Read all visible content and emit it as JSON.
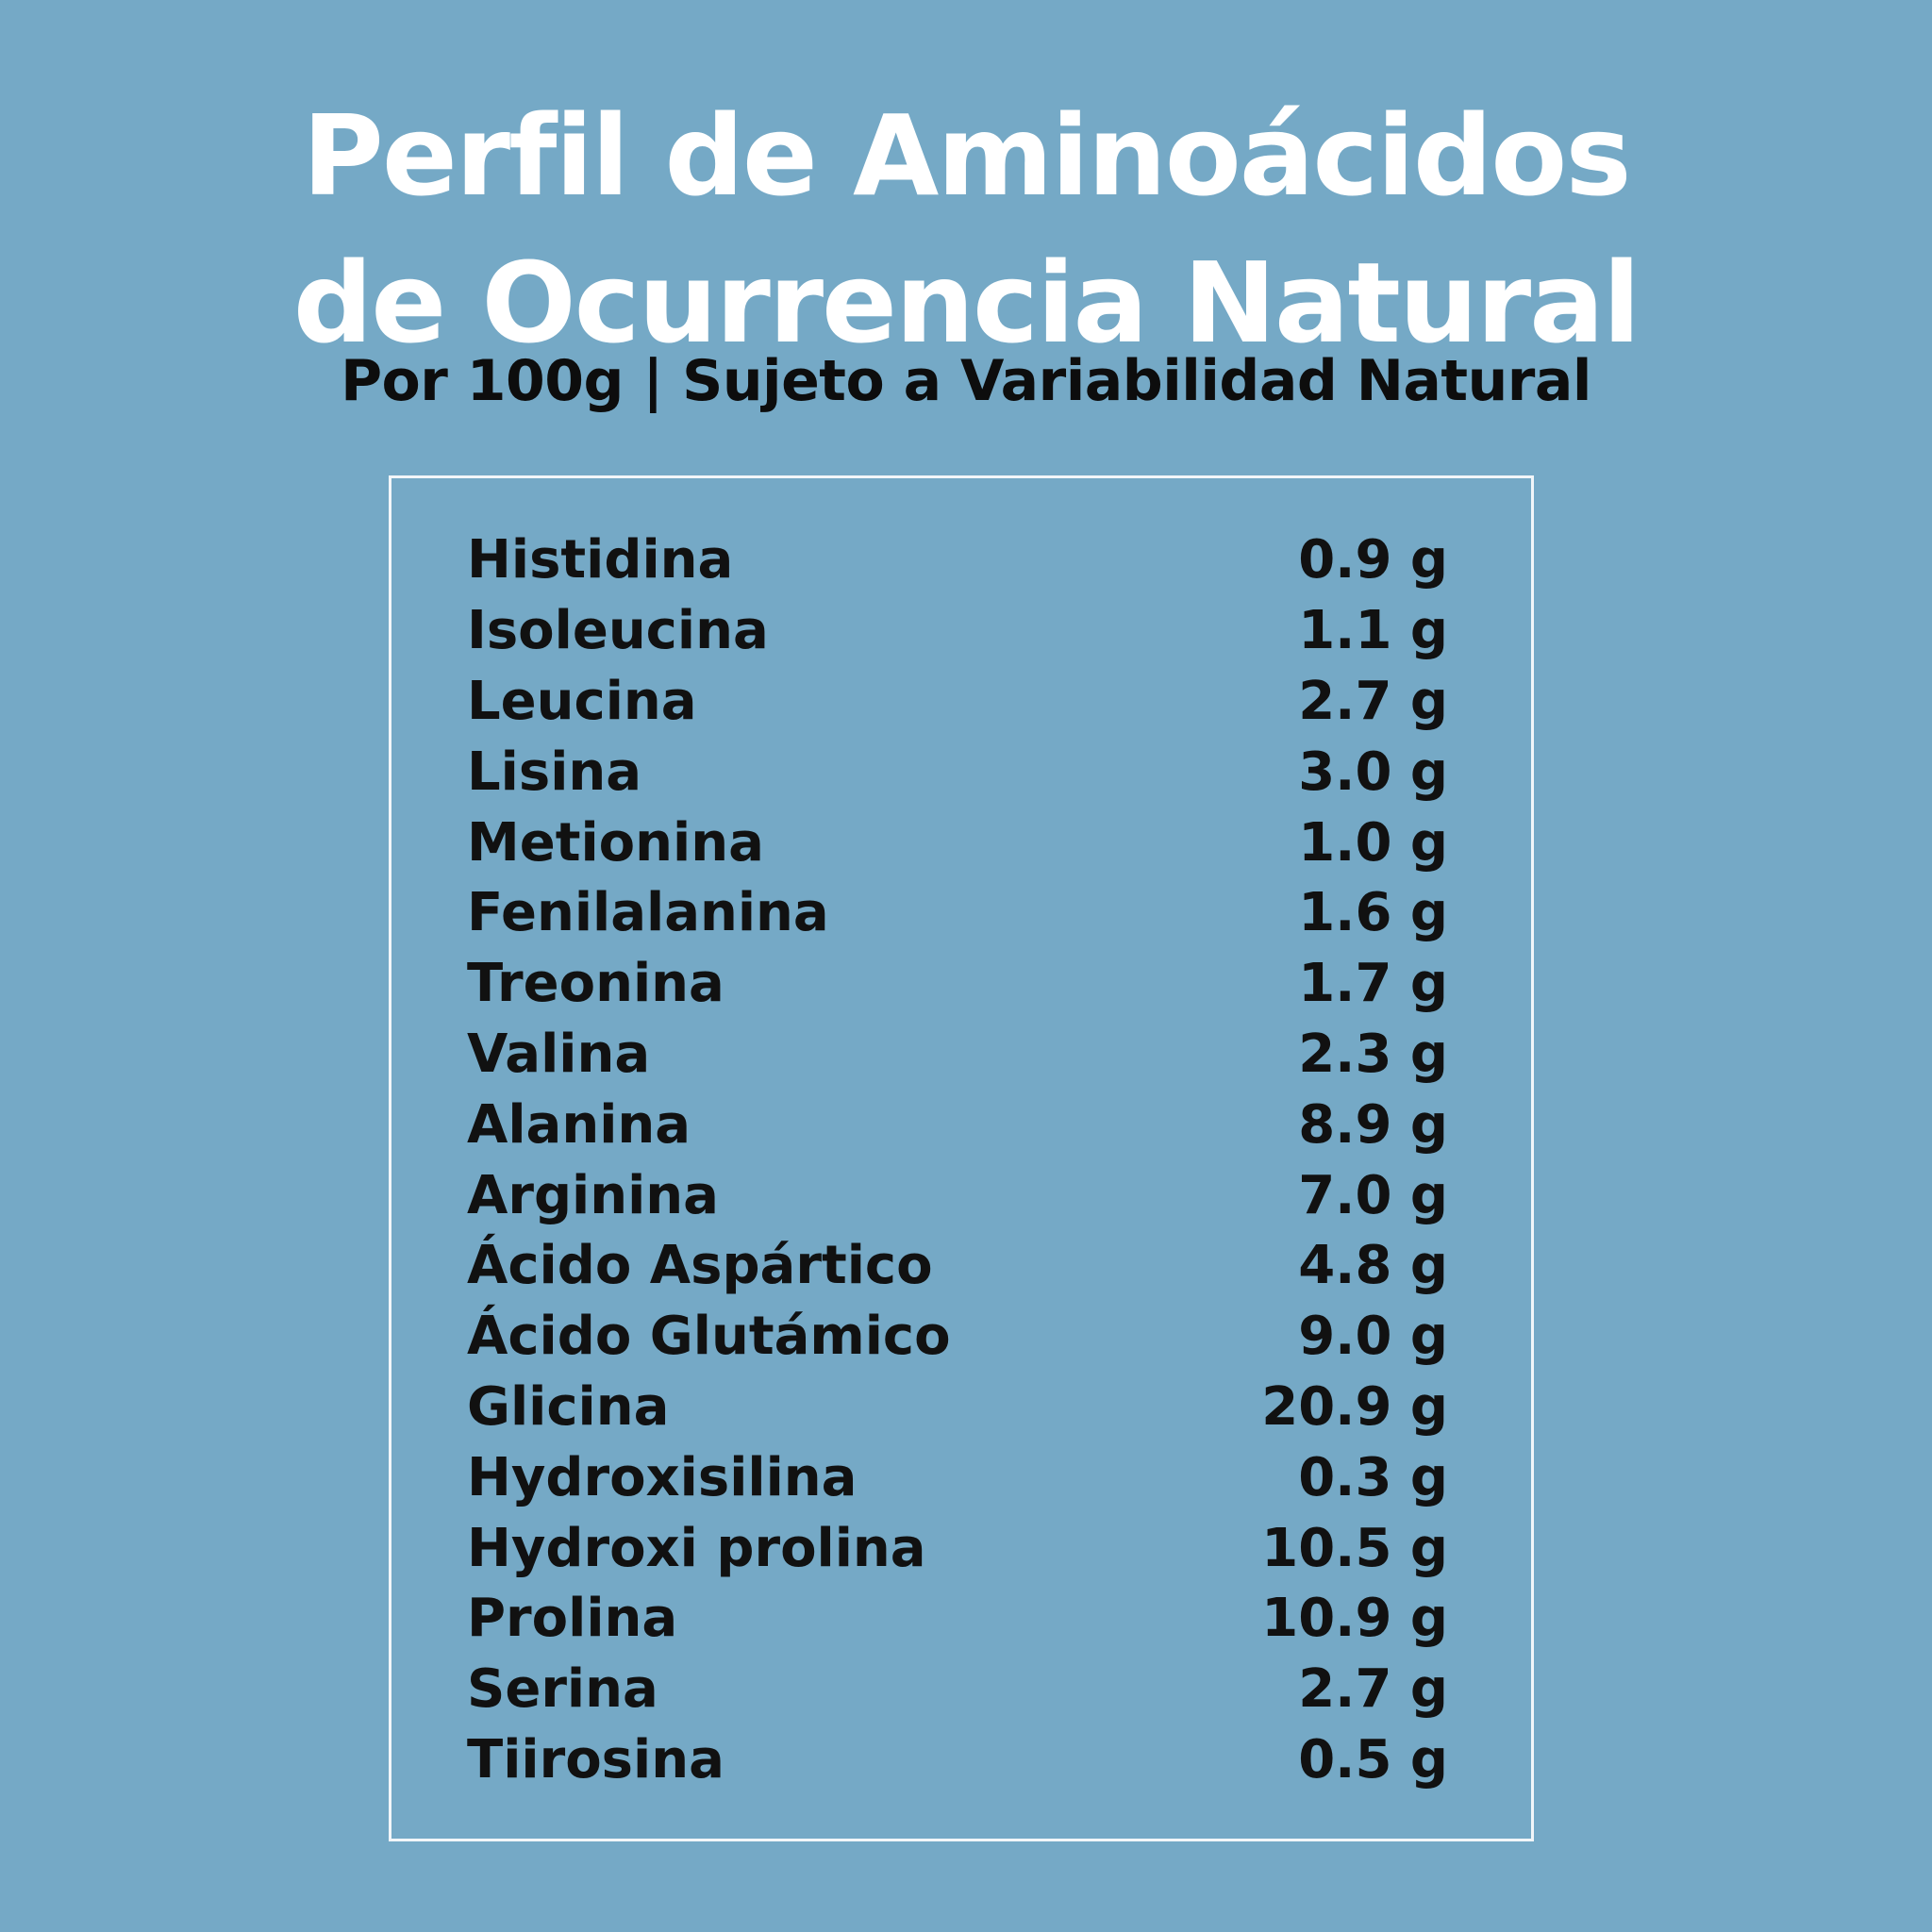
{
  "header": {
    "title_line_1": "Perfil de Aminoácidos",
    "title_line_2": "de Ocurrencia Natural",
    "subtitle": "Por 100g | Sujeto a Variabilidad Natural"
  },
  "colors": {
    "background": "#75a9c6",
    "title": "#ffffff",
    "text": "#111111",
    "panel_border": "#f2f6f9"
  },
  "amino_acids": [
    {
      "name": "Histidina",
      "value": "0.9 g"
    },
    {
      "name": "Isoleucina",
      "value": "1.1 g"
    },
    {
      "name": "Leucina",
      "value": "2.7 g"
    },
    {
      "name": "Lisina",
      "value": "3.0 g"
    },
    {
      "name": "Metionina",
      "value": "1.0 g"
    },
    {
      "name": "Fenilalanina",
      "value": "1.6 g"
    },
    {
      "name": "Treonina",
      "value": "1.7 g"
    },
    {
      "name": "Valina",
      "value": "2.3 g"
    },
    {
      "name": "Alanina",
      "value": "8.9 g"
    },
    {
      "name": "Arginina",
      "value": "7.0 g"
    },
    {
      "name": "Ácido Aspártico",
      "value": "4.8 g"
    },
    {
      "name": "Ácido Glutámico",
      "value": "9.0 g"
    },
    {
      "name": "Glicina",
      "value": "20.9 g"
    },
    {
      "name": "Hydroxisilina",
      "value": "0.3 g"
    },
    {
      "name": "Hydroxi prolina",
      "value": "10.5 g"
    },
    {
      "name": "Prolina",
      "value": "10.9 g"
    },
    {
      "name": "Serina",
      "value": "2.7 g"
    },
    {
      "name": "Tiirosina",
      "value": "0.5 g"
    }
  ]
}
